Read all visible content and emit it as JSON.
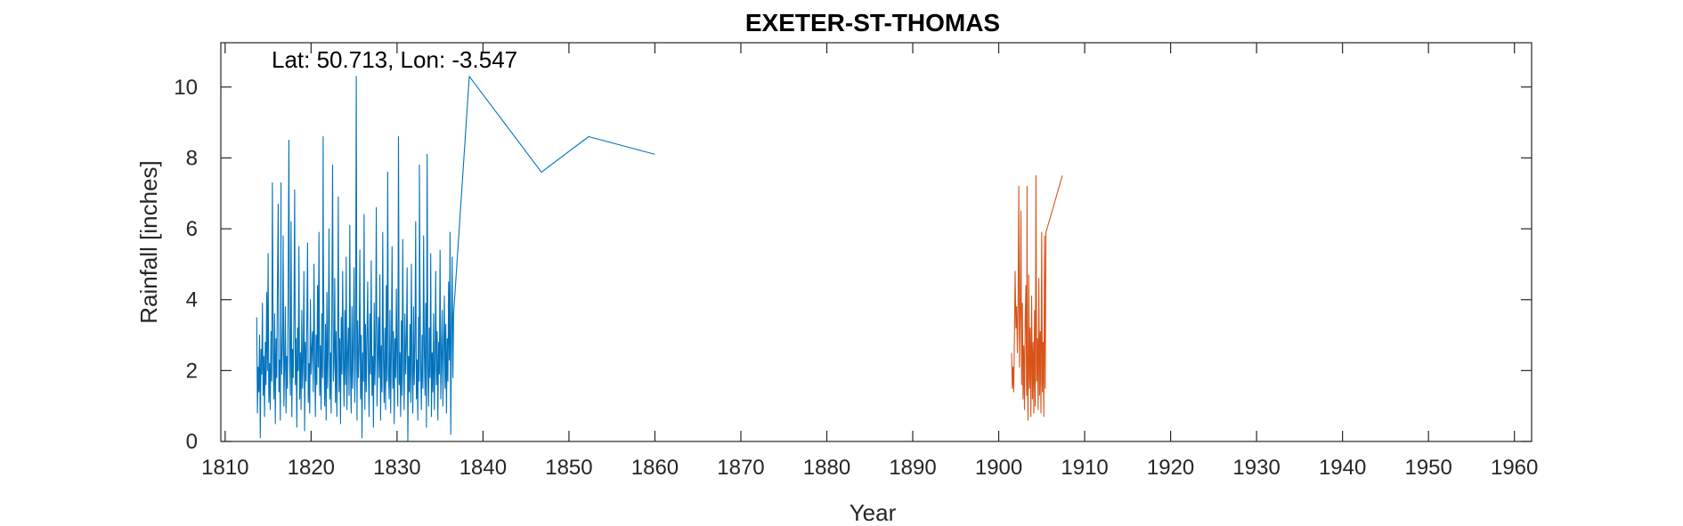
{
  "chart_data": {
    "type": "line",
    "title": "EXETER-ST-THOMAS",
    "xlabel": "Year",
    "ylabel": "Rainfall [inches]",
    "annotation": "Lat: 50.713, Lon: -3.547",
    "xlim": [
      1809.5,
      1962
    ],
    "ylim": [
      0,
      11.25
    ],
    "xticks": [
      1810,
      1820,
      1830,
      1840,
      1850,
      1860,
      1870,
      1880,
      1890,
      1900,
      1910,
      1920,
      1930,
      1940,
      1950,
      1960
    ],
    "yticks": [
      0,
      2,
      4,
      6,
      8,
      10
    ],
    "grid": false,
    "series": [
      {
        "color": "#0072BD",
        "start": 1813.67,
        "step": 0.08333,
        "peaks": [
          [
            1821.4,
            8.6
          ],
          [
            1838.4,
            10.3
          ],
          [
            1852.3,
            8.6
          ],
          [
            1860.0,
            8.1
          ],
          [
            1832.6,
            7.8
          ],
          [
            1816.5,
            7.3
          ],
          [
            1846.8,
            7.6
          ]
        ],
        "values": [
          3.5,
          0.8,
          2.1,
          1.4,
          3.0,
          0.1,
          2.6,
          1.9,
          3.9,
          1.3,
          2.4,
          0.7,
          2.8,
          1.6,
          4.2,
          2.0,
          5.3,
          1.1,
          2.2,
          0.9,
          3.1,
          1.7,
          7.3,
          2.5,
          1.2,
          3.6,
          0.5,
          2.9,
          1.8,
          4.5,
          6.7,
          1.4,
          2.3,
          0.6,
          3.3,
          1.9,
          2.7,
          5.8,
          1.0,
          2.1,
          3.8,
          0.8,
          2.4,
          1.5,
          4.1,
          8.5,
          2.2,
          1.3,
          6.2,
          0.7,
          2.6,
          1.8,
          3.5,
          7.1,
          1.6,
          2.9,
          0.4,
          3.2,
          2.0,
          5.5,
          1.2,
          2.5,
          0.9,
          3.7,
          1.5,
          2.3,
          4.8,
          0.3,
          2.8,
          1.7,
          3.4,
          5.6,
          1.1,
          2.2,
          0.8,
          4.0,
          1.9,
          2.6,
          3.1,
          1.4,
          5.0,
          2.4,
          0.7,
          3.0,
          1.6,
          4.4,
          2.1,
          5.9,
          1.3,
          2.7,
          0.9,
          3.6,
          1.8,
          5.6,
          2.3,
          1.0,
          3.3,
          0.6,
          4.2,
          1.5,
          2.8,
          6.0,
          1.2,
          2.5,
          0.8,
          3.9,
          7.8,
          1.7,
          2.2,
          4.6,
          1.1,
          3.1,
          0.7,
          2.6,
          6.9,
          1.4,
          2.9,
          0.5,
          3.5,
          1.9,
          4.8,
          2.2,
          1.0,
          3.7,
          1.6,
          5.2,
          0.9,
          2.4,
          3.2,
          1.3,
          6.1,
          2.0,
          0.8,
          3.8,
          1.5,
          2.7,
          4.9,
          1.1,
          2.3,
          10.3,
          0.6,
          3.4,
          1.8,
          2.6,
          5.4,
          1.2,
          3.0,
          0.1,
          2.5,
          1.7,
          6.4,
          0.9,
          3.3,
          1.4,
          2.8,
          4.5,
          2.1,
          0.7,
          3.6,
          1.9,
          5.1,
          1.3,
          2.4,
          0.4,
          3.9,
          1.6,
          2.9,
          6.6,
          1.0,
          2.2,
          3.5,
          1.8,
          4.7,
          0.6,
          2.7,
          1.4,
          5.9,
          2.3,
          1.1,
          3.2,
          0.9,
          4.4,
          1.7,
          7.6,
          2.0,
          1.2,
          3.7,
          0.8,
          2.6,
          5.5,
          1.5,
          3.1,
          0.5,
          2.9,
          1.8,
          4.3,
          2.2,
          1.0,
          8.6,
          1.6,
          2.5,
          0.7,
          3.4,
          1.3,
          5.7,
          2.1,
          0.9,
          3.6,
          1.9,
          2.8,
          4.9,
          0.0,
          2.4,
          1.4,
          3.3,
          1.1,
          5.0,
          2.0,
          0.8,
          3.8,
          1.6,
          2.7,
          6.2,
          1.2,
          2.3,
          0.6,
          3.5,
          1.7,
          4.6,
          2.2,
          0.9,
          3.0,
          1.5,
          5.8,
          2.6,
          1.3,
          3.9,
          0.4,
          8.1,
          2.1,
          1.0,
          3.2,
          1.8,
          5.3,
          0.7,
          2.5,
          1.4,
          3.6,
          0.9,
          2.2,
          4.8,
          1.6,
          3.1,
          0.6,
          2.8,
          1.9,
          5.4,
          1.2,
          2.4,
          3.7,
          1.0,
          2.6,
          4.1,
          1.5,
          3.3,
          0.8,
          2.9,
          1.7,
          4.5,
          2.3,
          5.9,
          0.2,
          3.0,
          5.2,
          1.8,
          3.6
        ]
      },
      {
        "color": "#D95319",
        "start": 1901.5,
        "step": 0.08333,
        "peaks": [
          [
            1903.3,
            7.2
          ],
          [
            1907.4,
            7.5
          ]
        ],
        "values": [
          2.5,
          1.5,
          2.1,
          1.4,
          2.9,
          4.8,
          3.2,
          3.8,
          2.5,
          3.9,
          7.2,
          2.1,
          3.6,
          6.5,
          1.6,
          3.9,
          1.2,
          2.7,
          0.9,
          3.5,
          4.4,
          1.3,
          2.4,
          0.6,
          4.7,
          1.5,
          3.2,
          0.7,
          4.1,
          1.2,
          2.8,
          0.8,
          3.7,
          1.0,
          7.5,
          1.7,
          2.9,
          0.9,
          4.6,
          1.3,
          3.1,
          0.8,
          5.9,
          1.4,
          2.8,
          0.7,
          5.8,
          1.5,
          5.9
        ]
      }
    ]
  }
}
